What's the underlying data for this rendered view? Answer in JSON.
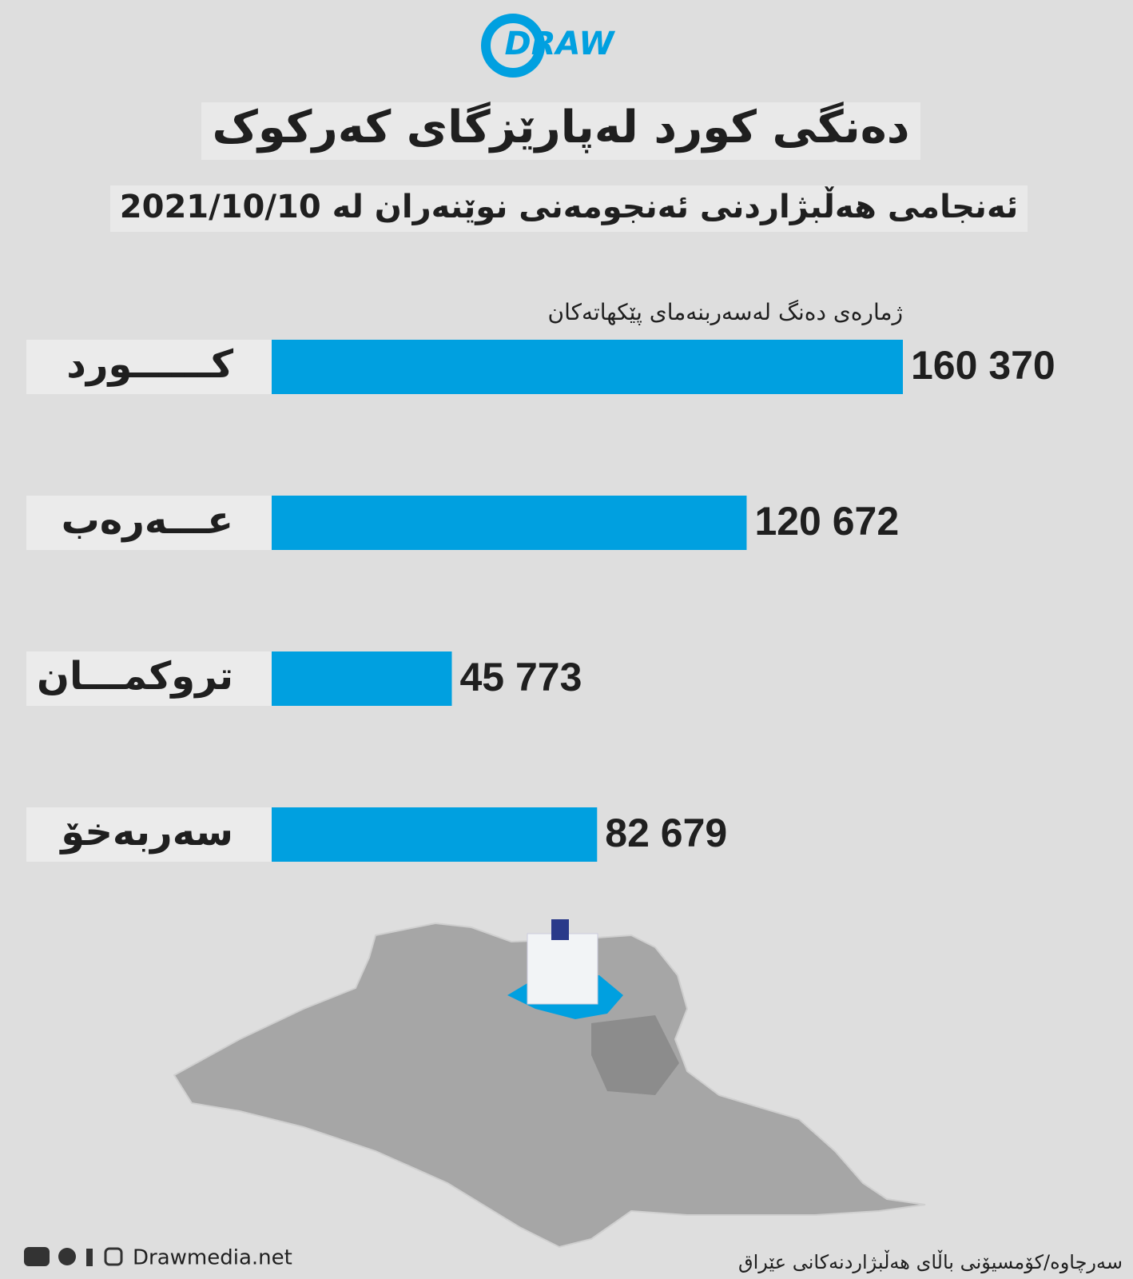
{
  "logo": "DRAW",
  "chart_data": {
    "type": "bar",
    "orientation": "horizontal",
    "title": "دەنگی کورد لەپارێزگای کەرکوک",
    "subtitle": "ئەنجامی هەڵبژاردنی ئەنجومەنی نوێنەران لە 2021/10/10",
    "axis_label": "ژمارەی دەنگ لەسەربنەمای پێکهاتەکان",
    "categories": [
      "کــــــورد",
      "عـــەرەب",
      "تروکمـــان",
      "سەربەخۆ"
    ],
    "values": [
      160370,
      120672,
      45773,
      82679
    ],
    "value_labels": [
      "160 370",
      "120 672",
      "45 773",
      "82 679"
    ],
    "color": "#00a0e0"
  },
  "footer": {
    "website": "Drawmedia.net",
    "source": "سەرچاوە/کۆمسیۆنی باڵای هەڵبژاردنەکانی عێراق"
  }
}
